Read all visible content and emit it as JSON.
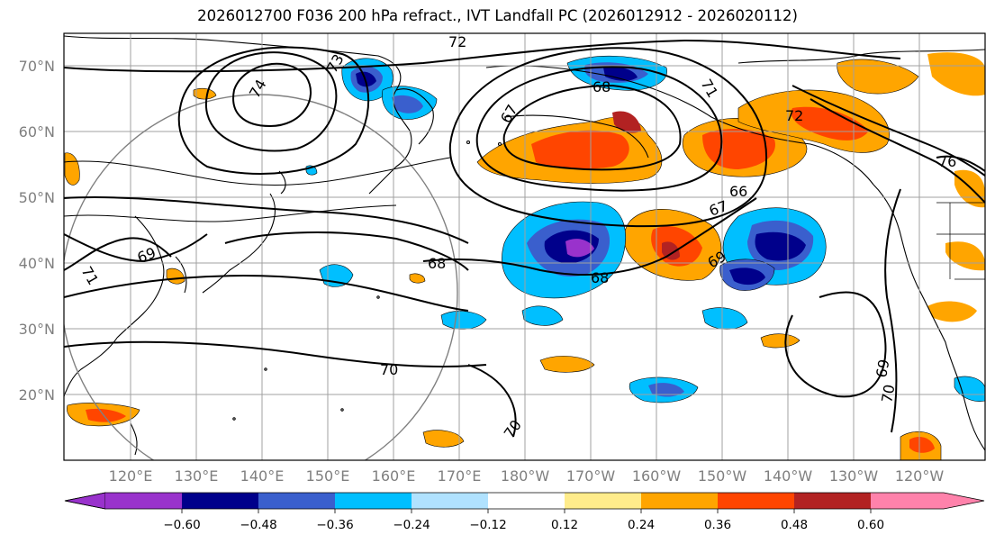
{
  "title": "2026012700 F036 200 hPa refract., IVT Landfall PC (2026012912 - 2026020112)",
  "lat_labels": [
    "70°N",
    "60°N",
    "50°N",
    "40°N",
    "30°N",
    "20°N"
  ],
  "lon_labels": [
    "120°E",
    "130°E",
    "140°E",
    "150°E",
    "160°E",
    "170°E",
    "180°W",
    "170°W",
    "160°W",
    "150°W",
    "140°W",
    "130°W",
    "120°W"
  ],
  "colorbar": {
    "colors": [
      "#9932cc",
      "#00008b",
      "#3a5fcd",
      "#00bfff",
      "#b0e2ff",
      "#ffffff",
      "#ffec8b",
      "#ffa500",
      "#ff4500",
      "#b22222",
      "#ff82ab"
    ],
    "tick_labels": [
      "−0.60",
      "−0.48",
      "−0.36",
      "−0.24",
      "−0.12",
      "0.12",
      "0.24",
      "0.36",
      "0.48",
      "0.60"
    ]
  },
  "contour_labels": [
    "72",
    "73",
    "74",
    "71",
    "68",
    "67",
    "66",
    "67",
    "69",
    "71",
    "68",
    "68",
    "69",
    "70",
    "70",
    "69",
    "70",
    "76",
    "72"
  ],
  "colors": {
    "purple": "#9932cc",
    "navy": "#00008b",
    "blue": "#3a5fcd",
    "cyan": "#00bfff",
    "lightblue": "#b0e2ff",
    "yellow": "#ffec8b",
    "orange": "#ffa500",
    "redorange": "#ff4500",
    "darkred": "#b22222",
    "pink": "#ff82ab"
  }
}
